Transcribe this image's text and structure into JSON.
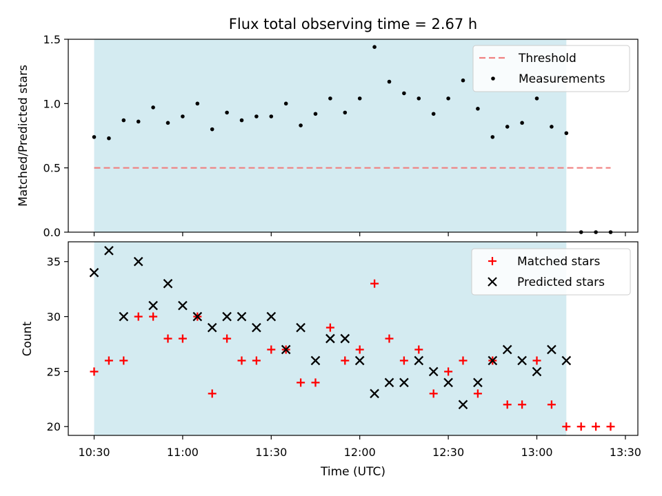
{
  "chart_data": [
    {
      "type": "scatter",
      "title": "Flux total observing time = 2.67 h",
      "ylabel": "Matched/Predicted stars",
      "xlabel": "",
      "ylim": [
        0,
        1.5
      ],
      "yticks": [
        "0.0",
        "0.5",
        "1.0",
        "1.5"
      ],
      "shaded_region": {
        "x_start": "10:30",
        "x_end": "13:10",
        "color": "#d4ebf1"
      },
      "legend": {
        "placement": "top-right",
        "entries": [
          "Threshold",
          "Measurements"
        ]
      },
      "threshold": {
        "name": "Threshold",
        "value": 0.5,
        "x_start": "10:30",
        "x_end": "13:25",
        "color": "#f08080"
      },
      "series": [
        {
          "name": "Measurements",
          "color": "#000000",
          "x": [
            "10:30",
            "10:35",
            "10:40",
            "10:45",
            "10:50",
            "10:55",
            "11:00",
            "11:05",
            "11:10",
            "11:15",
            "11:20",
            "11:25",
            "11:30",
            "11:35",
            "11:40",
            "11:45",
            "11:50",
            "11:55",
            "12:00",
            "12:05",
            "12:10",
            "12:15",
            "12:20",
            "12:25",
            "12:30",
            "12:35",
            "12:40",
            "12:45",
            "12:50",
            "12:55",
            "13:00",
            "13:05",
            "13:10",
            "13:15",
            "13:20",
            "13:25"
          ],
          "y": [
            0.74,
            0.73,
            0.87,
            0.86,
            0.97,
            0.85,
            0.9,
            1.0,
            0.8,
            0.93,
            0.87,
            0.9,
            0.9,
            1.0,
            0.83,
            0.92,
            1.04,
            0.93,
            1.04,
            1.44,
            1.17,
            1.08,
            1.04,
            0.92,
            1.04,
            1.18,
            0.96,
            0.74,
            0.82,
            0.85,
            1.04,
            0.82,
            0.77,
            0.0,
            0.0,
            0.0
          ]
        }
      ]
    },
    {
      "type": "scatter",
      "title": "",
      "ylabel": "Count",
      "xlabel": "Time (UTC)",
      "ylim": [
        19.2,
        36.8
      ],
      "yticks": [
        "20",
        "25",
        "30",
        "35"
      ],
      "xticks": [
        "10:30",
        "11:00",
        "11:30",
        "12:00",
        "12:30",
        "13:00",
        "13:30"
      ],
      "legend": {
        "placement": "top-right",
        "entries": [
          "Matched stars",
          "Predicted stars"
        ]
      },
      "series": [
        {
          "name": "Matched stars",
          "marker": "+",
          "color": "#ff0000",
          "x": [
            "10:30",
            "10:35",
            "10:40",
            "10:45",
            "10:50",
            "10:55",
            "11:00",
            "11:05",
            "11:10",
            "11:15",
            "11:20",
            "11:25",
            "11:30",
            "11:35",
            "11:40",
            "11:45",
            "11:50",
            "11:55",
            "12:00",
            "12:05",
            "12:10",
            "12:15",
            "12:20",
            "12:25",
            "12:30",
            "12:35",
            "12:40",
            "12:45",
            "12:50",
            "12:55",
            "13:00",
            "13:05",
            "13:10",
            "13:15",
            "13:20",
            "13:25"
          ],
          "y": [
            25,
            26,
            26,
            30,
            30,
            28,
            28,
            30,
            23,
            28,
            26,
            26,
            27,
            27,
            24,
            24,
            29,
            26,
            27,
            33,
            28,
            26,
            27,
            23,
            25,
            26,
            23,
            26,
            22,
            22,
            26,
            22,
            20,
            20,
            20,
            20
          ]
        },
        {
          "name": "Predicted stars",
          "marker": "x",
          "color": "#000000",
          "x": [
            "10:30",
            "10:35",
            "10:40",
            "10:45",
            "10:50",
            "10:55",
            "11:00",
            "11:05",
            "11:10",
            "11:15",
            "11:20",
            "11:25",
            "11:30",
            "11:35",
            "11:40",
            "11:45",
            "11:50",
            "11:55",
            "12:00",
            "12:05",
            "12:10",
            "12:15",
            "12:20",
            "12:25",
            "12:30",
            "12:35",
            "12:40",
            "12:45",
            "12:50",
            "12:55",
            "13:00",
            "13:05",
            "13:10"
          ],
          "y": [
            34,
            36,
            30,
            35,
            31,
            33,
            31,
            30,
            29,
            30,
            30,
            29,
            30,
            27,
            29,
            26,
            28,
            28,
            26,
            23,
            24,
            24,
            26,
            25,
            24,
            22,
            24,
            26,
            27,
            26,
            25,
            27,
            26
          ]
        }
      ]
    }
  ]
}
